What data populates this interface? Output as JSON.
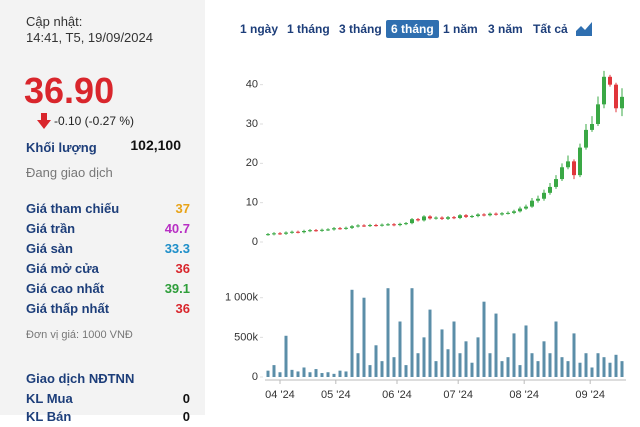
{
  "panel": {
    "updated_label": "Cập nhật:",
    "updated_time": "14:41, T5, 19/09/2024",
    "price": "36.90",
    "change": "-0.10 (-0.27 %)",
    "volume_label": "Khối lượng",
    "volume": "102,100",
    "status": "Đang giao dịch",
    "rows": [
      {
        "label": "Giá tham chiếu",
        "value": "37",
        "color": "#e8a317"
      },
      {
        "label": "Giá trần",
        "value": "40.7",
        "color": "#b82fc4"
      },
      {
        "label": "Giá sàn",
        "value": "33.3",
        "color": "#1f8fc9"
      },
      {
        "label": "Giá mở cửa",
        "value": "36",
        "color": "#d9262c"
      },
      {
        "label": "Giá cao nhất",
        "value": "39.1",
        "color": "#2e9e3a"
      },
      {
        "label": "Giá thấp nhất",
        "value": "36",
        "color": "#d9262c"
      }
    ],
    "unit_note": "Đơn vị giá: 1000 VNĐ",
    "foreign_title": "Giao dịch NĐTNN",
    "foreign_rows": [
      {
        "label": "KL Mua",
        "value": "0"
      },
      {
        "label": "KL Bán",
        "value": "0"
      }
    ]
  },
  "tabs": {
    "items": [
      "1 ngày",
      "1 tháng",
      "3 tháng",
      "6 tháng",
      "1 năm",
      "3 năm",
      "Tất cả"
    ],
    "active": 3
  },
  "chart_data": {
    "type": "candlestick",
    "up_color": "#3aa845",
    "down_color": "#e0353b",
    "open": [
      1.9,
      2.0,
      2.2,
      2.1,
      2.4,
      2.6,
      2.5,
      2.8,
      3.0,
      2.9,
      3.1,
      3.2,
      3.5,
      3.4,
      3.6,
      4.0,
      4.2,
      4.1,
      4.3,
      4.2,
      4.4,
      4.5,
      4.3,
      4.6,
      4.8,
      5.8,
      5.5,
      6.5,
      6.0,
      6.2,
      5.9,
      6.3,
      6.1,
      6.8,
      6.4,
      6.6,
      7.0,
      6.8,
      7.2,
      7.0,
      7.3,
      7.4,
      7.8,
      8.5,
      9.0,
      10.5,
      11.0,
      12.5,
      14.0,
      16.0,
      19.0,
      20.5,
      17.0,
      24.0,
      28.5,
      30.0,
      35.0,
      42.0,
      40.0,
      34.0
    ],
    "high": [
      2.3,
      2.5,
      2.5,
      2.7,
      2.9,
      2.9,
      3.1,
      3.3,
      3.3,
      3.4,
      3.5,
      3.8,
      3.8,
      3.9,
      4.3,
      4.5,
      4.5,
      4.6,
      4.6,
      4.7,
      4.8,
      4.8,
      4.9,
      5.1,
      6.1,
      6.1,
      6.8,
      6.8,
      6.5,
      6.5,
      6.6,
      6.6,
      7.1,
      7.1,
      6.9,
      7.3,
      7.3,
      7.5,
      7.5,
      7.6,
      7.8,
      8.2,
      9.0,
      9.5,
      11.2,
      11.8,
      13.3,
      15.0,
      17.0,
      20.0,
      22.0,
      21.0,
      25.0,
      30.0,
      32.0,
      37.0,
      43.5,
      42.5,
      40.5,
      39.1
    ],
    "low": [
      1.6,
      1.7,
      1.8,
      1.8,
      2.1,
      2.2,
      2.2,
      2.5,
      2.6,
      2.6,
      2.8,
      2.9,
      3.1,
      3.1,
      3.3,
      3.7,
      3.8,
      3.8,
      3.9,
      3.9,
      4.1,
      4.0,
      4.0,
      4.3,
      4.5,
      5.2,
      5.2,
      5.7,
      5.7,
      5.6,
      5.6,
      5.8,
      5.8,
      6.1,
      6.1,
      6.3,
      6.5,
      6.5,
      6.7,
      6.7,
      7.0,
      7.1,
      7.5,
      8.2,
      8.7,
      10.0,
      10.5,
      12.0,
      13.5,
      15.5,
      18.5,
      16.0,
      16.5,
      23.5,
      28.0,
      29.5,
      34.0,
      39.5,
      33.0,
      32.0
    ],
    "close": [
      2.0,
      2.2,
      2.1,
      2.4,
      2.6,
      2.5,
      2.8,
      3.0,
      2.9,
      3.1,
      3.2,
      3.5,
      3.4,
      3.6,
      4.0,
      4.2,
      4.1,
      4.3,
      4.2,
      4.4,
      4.5,
      4.3,
      4.6,
      4.8,
      5.8,
      5.5,
      6.5,
      6.0,
      6.2,
      5.9,
      6.3,
      6.1,
      6.8,
      6.4,
      6.6,
      7.0,
      6.8,
      7.2,
      7.0,
      7.3,
      7.4,
      7.8,
      8.5,
      9.0,
      10.5,
      11.0,
      12.5,
      14.0,
      16.0,
      19.0,
      20.5,
      17.0,
      24.0,
      28.5,
      30.0,
      35.0,
      42.0,
      40.0,
      34.0,
      36.9
    ],
    "ylim": [
      0,
      45
    ],
    "yticks": [
      0,
      10,
      20,
      30,
      40
    ],
    "xticks": [
      {
        "value": 2,
        "label": "04 '24"
      },
      {
        "value": 11.3,
        "label": "05 '24"
      },
      {
        "value": 21.5,
        "label": "06 '24"
      },
      {
        "value": 31.7,
        "label": "07 '24"
      },
      {
        "value": 42.7,
        "label": "08 '24"
      },
      {
        "value": 53.7,
        "label": "09 '24"
      }
    ],
    "volume": {
      "color": "#5b8ea8",
      "values": [
        80000,
        150000,
        60000,
        520000,
        90000,
        70000,
        120000,
        60000,
        100000,
        50000,
        60000,
        40000,
        80000,
        70000,
        1100000,
        300000,
        1000000,
        150000,
        400000,
        200000,
        1120000,
        250000,
        700000,
        150000,
        1120000,
        300000,
        500000,
        850000,
        200000,
        600000,
        350000,
        700000,
        300000,
        450000,
        180000,
        500000,
        950000,
        300000,
        800000,
        200000,
        250000,
        550000,
        150000,
        650000,
        300000,
        200000,
        450000,
        300000,
        700000,
        250000,
        200000,
        550000,
        180000,
        300000,
        120000,
        300000,
        250000,
        180000,
        280000,
        200000
      ],
      "ylim": [
        0,
        1400000
      ],
      "yticks": [
        0,
        {
          "value": 500000,
          "label": "500k"
        },
        {
          "value": 1000000,
          "label": "1 000k"
        }
      ]
    }
  }
}
